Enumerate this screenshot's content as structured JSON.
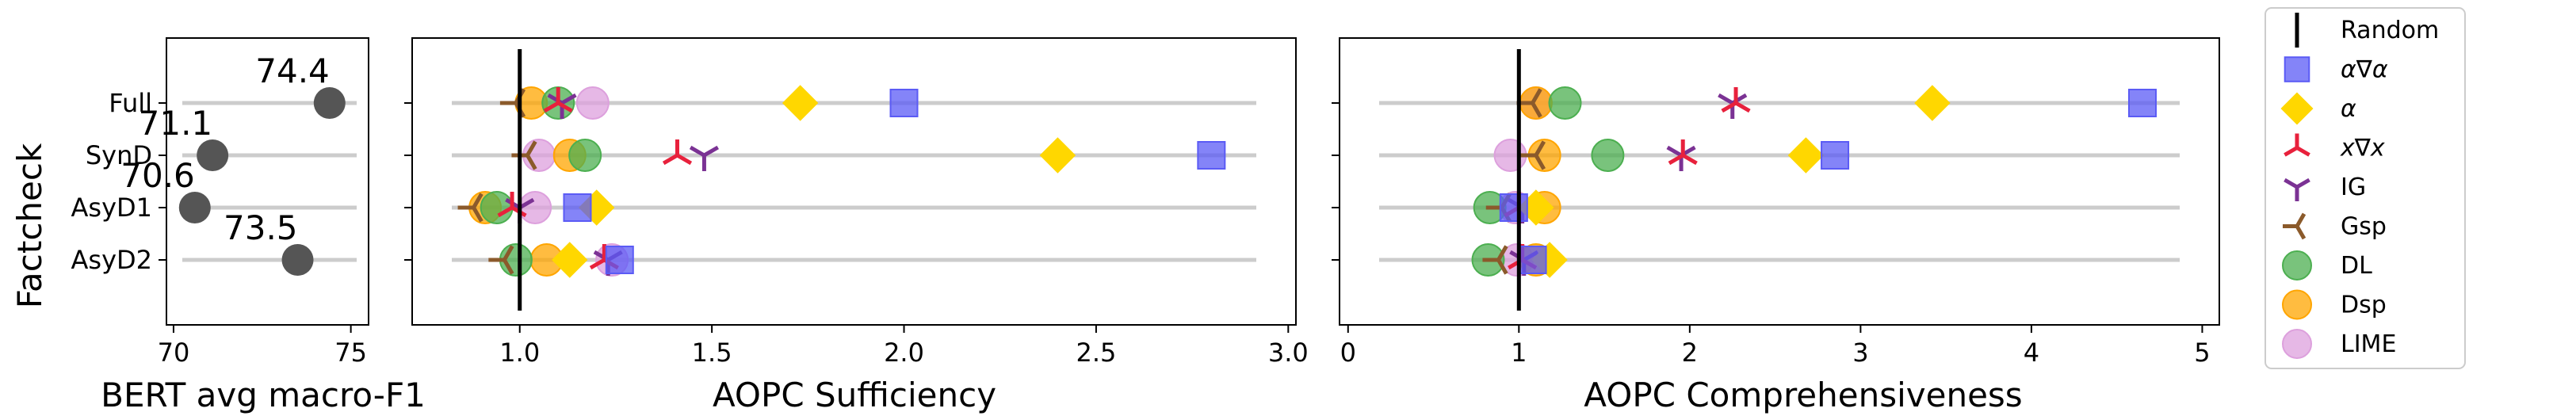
{
  "colors": {
    "Random": "#000000",
    "aga": "#5b5bf5",
    "a": "#ffd700",
    "xgx": "#e8213c",
    "IG": "#7b3294",
    "Gsp": "#8b5a2b",
    "DL": "#4caf50",
    "Dsp": "#ffa500",
    "LIME": "#dda0dd",
    "bert": "#555555"
  },
  "legend": [
    {
      "key": "Random",
      "label": "Random",
      "marker": "vline"
    },
    {
      "key": "aga",
      "label": "α∇α",
      "marker": "square"
    },
    {
      "key": "a",
      "label": "α",
      "marker": "diamond"
    },
    {
      "key": "xgx",
      "label": "x∇x",
      "marker": "tri-down"
    },
    {
      "key": "IG",
      "label": "IG",
      "marker": "tri-up"
    },
    {
      "key": "Gsp",
      "label": "Gsp",
      "marker": "tri-left"
    },
    {
      "key": "DL",
      "label": "DL",
      "marker": "circle"
    },
    {
      "key": "Dsp",
      "label": "Dsp",
      "marker": "circle"
    },
    {
      "key": "LIME",
      "label": "LIME",
      "marker": "circle"
    }
  ],
  "chart_data": [
    {
      "type": "scatter",
      "ylabel": "Factcheck",
      "xlabel": "BERT avg macro-F1",
      "categories": [
        "Full",
        "SynD",
        "AsyD1",
        "AsyD2"
      ],
      "xlim": [
        69.8,
        75.5
      ],
      "xticks": [
        70,
        75
      ],
      "values": [
        74.4,
        71.1,
        70.6,
        73.5
      ],
      "data_labels": [
        "74.4",
        "71.1",
        "70.6",
        "73.5"
      ]
    },
    {
      "type": "scatter",
      "xlabel": "AOPC Sufficiency",
      "categories": [
        "Full",
        "SynD",
        "AsyD1",
        "AsyD2"
      ],
      "xlim": [
        0.72,
        3.02
      ],
      "xticks": [
        "1.0",
        "1.5",
        "2.0",
        "2.5",
        "3.0"
      ],
      "baseline": 1.0,
      "series": [
        {
          "key": "aga",
          "values": [
            2.0,
            2.8,
            1.15,
            1.26
          ]
        },
        {
          "key": "a",
          "values": [
            1.73,
            2.4,
            1.2,
            1.13
          ]
        },
        {
          "key": "xgx",
          "values": [
            1.1,
            1.41,
            0.98,
            1.22
          ]
        },
        {
          "key": "IG",
          "values": [
            1.11,
            1.48,
            1.0,
            1.23
          ]
        },
        {
          "key": "Gsp",
          "values": [
            0.99,
            1.02,
            0.88,
            0.96
          ]
        },
        {
          "key": "DL",
          "values": [
            1.1,
            1.17,
            0.94,
            0.99
          ]
        },
        {
          "key": "Dsp",
          "values": [
            1.03,
            1.13,
            0.91,
            1.07
          ]
        },
        {
          "key": "LIME",
          "values": [
            1.19,
            1.05,
            1.04,
            1.24
          ]
        }
      ]
    },
    {
      "type": "scatter",
      "xlabel": "AOPC Comprehensiveness",
      "categories": [
        "Full",
        "SynD",
        "AsyD1",
        "AsyD2"
      ],
      "xlim": [
        -0.05,
        5.1
      ],
      "xticks": [
        "0",
        "1",
        "2",
        "3",
        "4",
        "5"
      ],
      "baseline": 1.0,
      "series": [
        {
          "key": "aga",
          "values": [
            4.65,
            2.85,
            0.97,
            1.08
          ]
        },
        {
          "key": "a",
          "values": [
            3.42,
            2.68,
            1.1,
            1.18
          ]
        },
        {
          "key": "xgx",
          "values": [
            2.27,
            1.96,
            1.0,
            1.02
          ]
        },
        {
          "key": "IG",
          "values": [
            2.25,
            1.95,
            1.02,
            1.03
          ]
        },
        {
          "key": "Gsp",
          "values": [
            1.08,
            1.1,
            0.9,
            0.88
          ]
        },
        {
          "key": "DL",
          "values": [
            1.27,
            1.52,
            0.83,
            0.82
          ]
        },
        {
          "key": "Dsp",
          "values": [
            1.1,
            1.15,
            1.15,
            1.1
          ]
        },
        {
          "key": "LIME",
          "values": [
            1.1,
            0.95,
            0.98,
            0.99
          ]
        }
      ]
    }
  ]
}
